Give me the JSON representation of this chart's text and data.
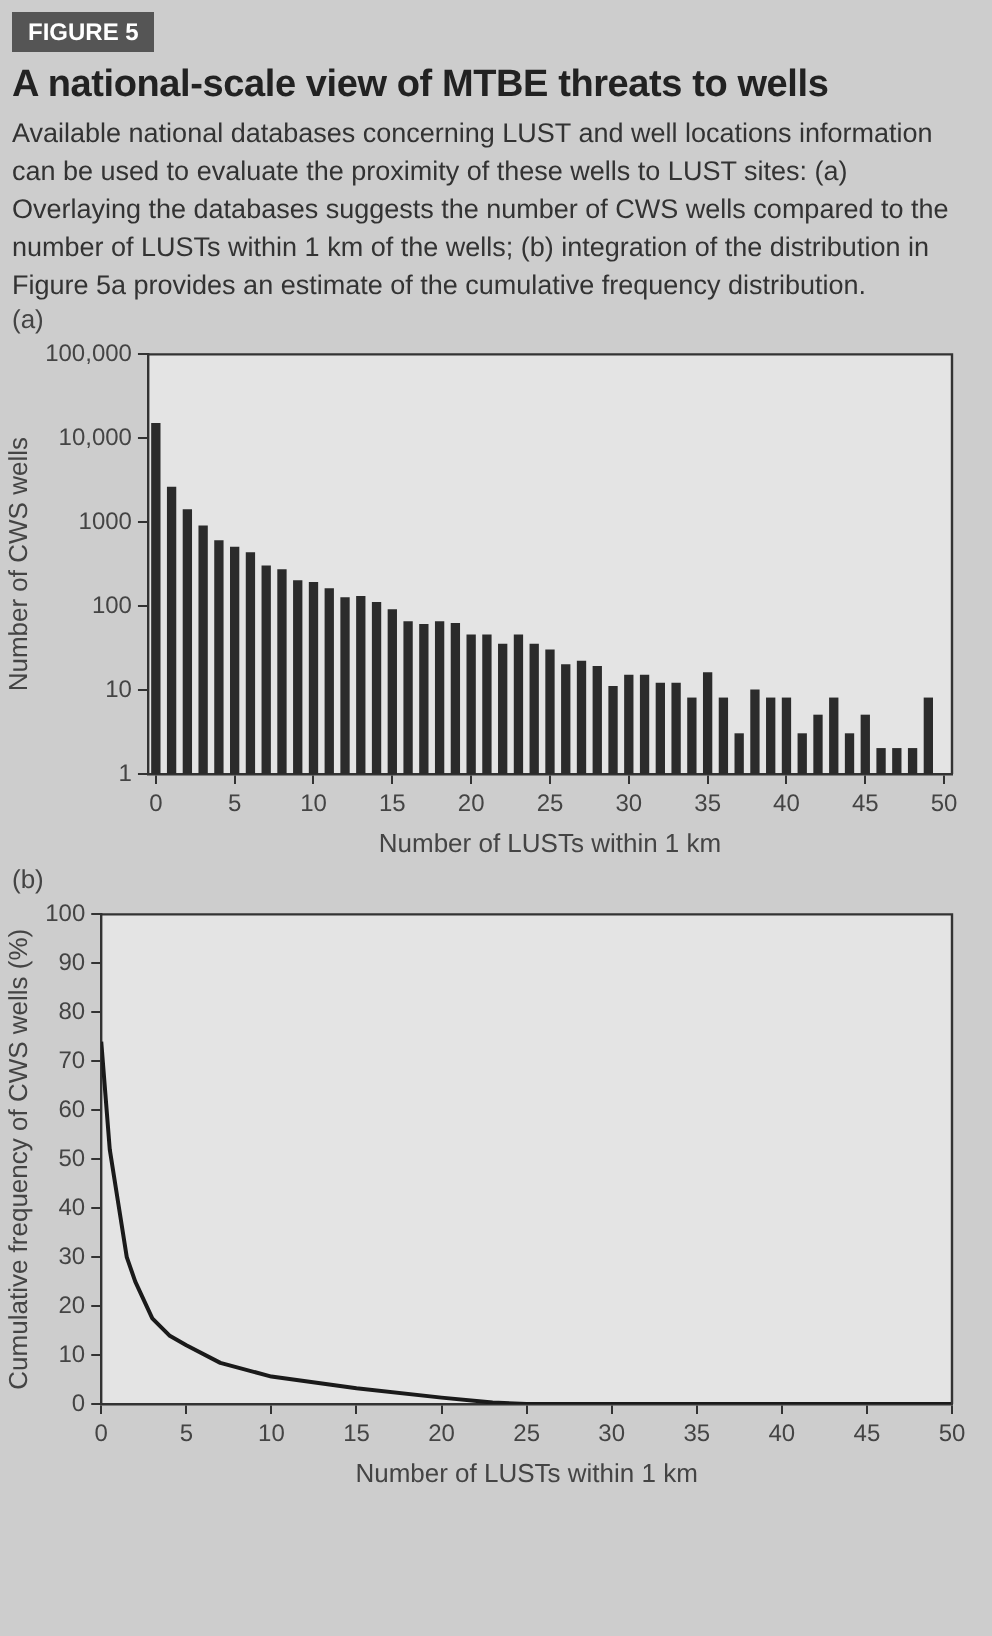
{
  "chart_data": [
    {
      "type": "bar",
      "title": "A national-scale view of MTBE threats to wells",
      "subtitle": "Available national databases concerning LUST and well locations information can be used to evaluate the proximity of these wells to LUST sites: (a) Overlaying the databases suggests the number of CWS wells compared to the number of LUSTs within 1 km of the wells; (b) integration of the distribution in Figure 5a provides an estimate of the cumulative frequency distribution.",
      "annotations": [
        "FIGURE 5",
        "(a)"
      ],
      "xlabel": "Number of LUSTs within 1 km",
      "ylabel": "Number of CWS wells",
      "x": [
        0,
        1,
        2,
        3,
        4,
        5,
        6,
        7,
        8,
        9,
        10,
        11,
        12,
        13,
        14,
        15,
        16,
        17,
        18,
        19,
        20,
        21,
        22,
        23,
        24,
        25,
        26,
        27,
        28,
        29,
        30,
        31,
        32,
        33,
        34,
        35,
        36,
        37,
        38,
        39,
        40,
        41,
        42,
        43,
        44,
        45,
        46,
        47,
        48,
        49
      ],
      "values": [
        15000,
        2600,
        1400,
        900,
        600,
        500,
        430,
        300,
        270,
        200,
        190,
        160,
        125,
        130,
        110,
        90,
        65,
        60,
        65,
        62,
        45,
        45,
        35,
        45,
        35,
        30,
        20,
        22,
        19,
        11,
        15,
        15,
        12,
        12,
        8,
        16,
        8,
        3,
        10,
        8,
        8,
        3,
        5,
        8,
        3,
        5,
        2,
        2,
        2,
        8
      ],
      "color": "#2b2b2b",
      "log": "y",
      "xlim": [
        -0.5,
        50.5
      ],
      "xticks": [
        0,
        5,
        10,
        15,
        20,
        25,
        30,
        35,
        40,
        45,
        50
      ],
      "ylim": [
        1,
        100000
      ],
      "yticks": [
        1,
        10,
        100,
        1000,
        {
          "value": 10000,
          "label": "10,000"
        },
        {
          "value": 100000,
          "label": "100,000"
        }
      ],
      "grid": false,
      "legend": false
    },
    {
      "type": "line",
      "annotations": [
        "(b)"
      ],
      "xlabel": "Number of LUSTs within 1 km",
      "ylabel": "Cumulative frequency of CWS wells (%)",
      "x": [
        0,
        0.5,
        1,
        1.5,
        2,
        3,
        4,
        5,
        7,
        10,
        15,
        20,
        23,
        25,
        50
      ],
      "values": [
        74,
        52,
        41,
        30,
        25,
        17.5,
        14,
        12,
        8.4,
        5.6,
        3.2,
        1.3,
        0.3,
        0,
        0
      ],
      "color": "#1a1a1a",
      "xlim": [
        0,
        50
      ],
      "xticks": [
        0,
        5,
        10,
        15,
        20,
        25,
        30,
        35,
        40,
        45,
        50
      ],
      "ylim": [
        0,
        100
      ],
      "yticks": [
        0,
        10,
        20,
        30,
        40,
        50,
        60,
        70,
        80,
        90,
        100
      ],
      "grid": false,
      "legend": false,
      "marker": "none",
      "line_style": "solid"
    }
  ]
}
